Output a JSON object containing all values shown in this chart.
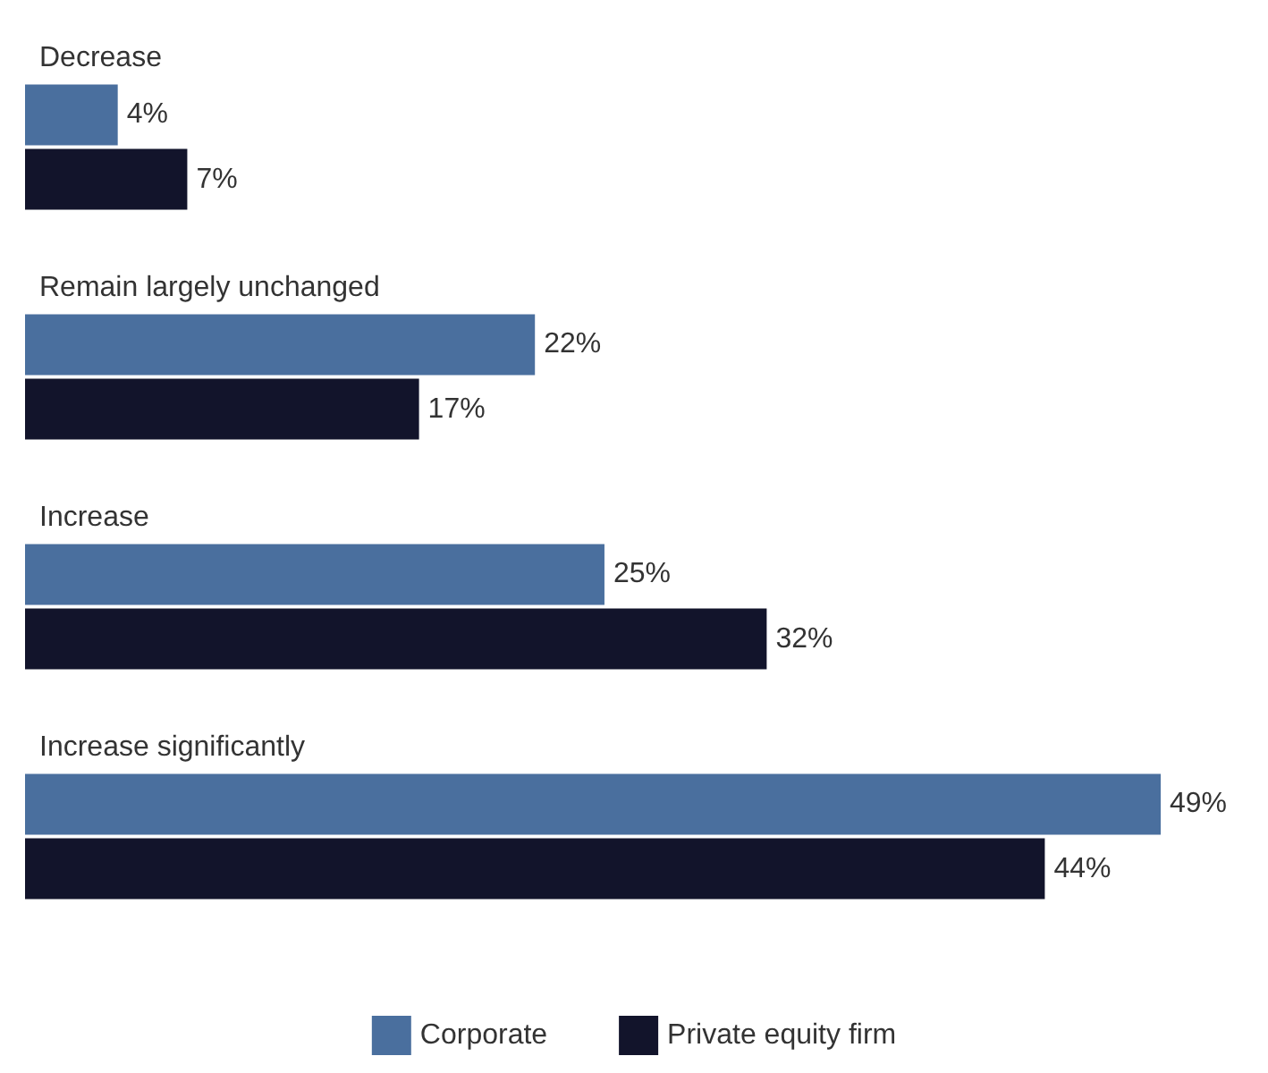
{
  "chart_data": {
    "type": "bar",
    "orientation": "horizontal",
    "categories": [
      "Decrease",
      "Remain largely unchanged",
      "Increase",
      "Increase significantly"
    ],
    "series": [
      {
        "name": "Corporate",
        "color": "#4a6f9e",
        "values": [
          4,
          22,
          25,
          49
        ],
        "value_labels": [
          "4%",
          "22%",
          "25%",
          "49%"
        ]
      },
      {
        "name": "Private equity firm",
        "color": "#12142b",
        "values": [
          7,
          17,
          32,
          44
        ],
        "value_labels": [
          "7%",
          "17%",
          "32%",
          "44%"
        ]
      }
    ],
    "legend": "bottom"
  }
}
